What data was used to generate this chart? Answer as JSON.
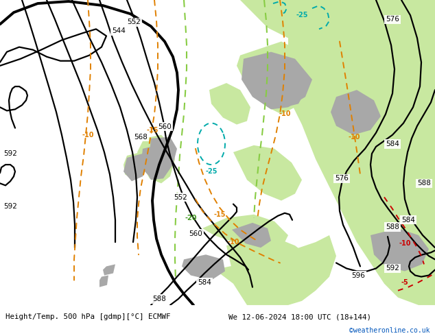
{
  "title_left": "Height/Temp. 500 hPa [gdmp][°C] ECMWF",
  "title_right": "We 12-06-2024 18:00 UTC (18+144)",
  "credit": "©weatheronline.co.uk",
  "bg_gray": "#c8c8c8",
  "land_green": "#c8e8a0",
  "land_gray": "#a8a8a8",
  "contour_black": "#000000",
  "temp_orange": "#e08000",
  "temp_red": "#cc0000",
  "temp_cyan": "#00aaaa",
  "green_dash": "#88cc44",
  "bottom_white": "#ffffff",
  "label_black": "#000000",
  "credit_blue": "#0055bb",
  "figsize": [
    6.34,
    4.9
  ],
  "dpi": 100
}
